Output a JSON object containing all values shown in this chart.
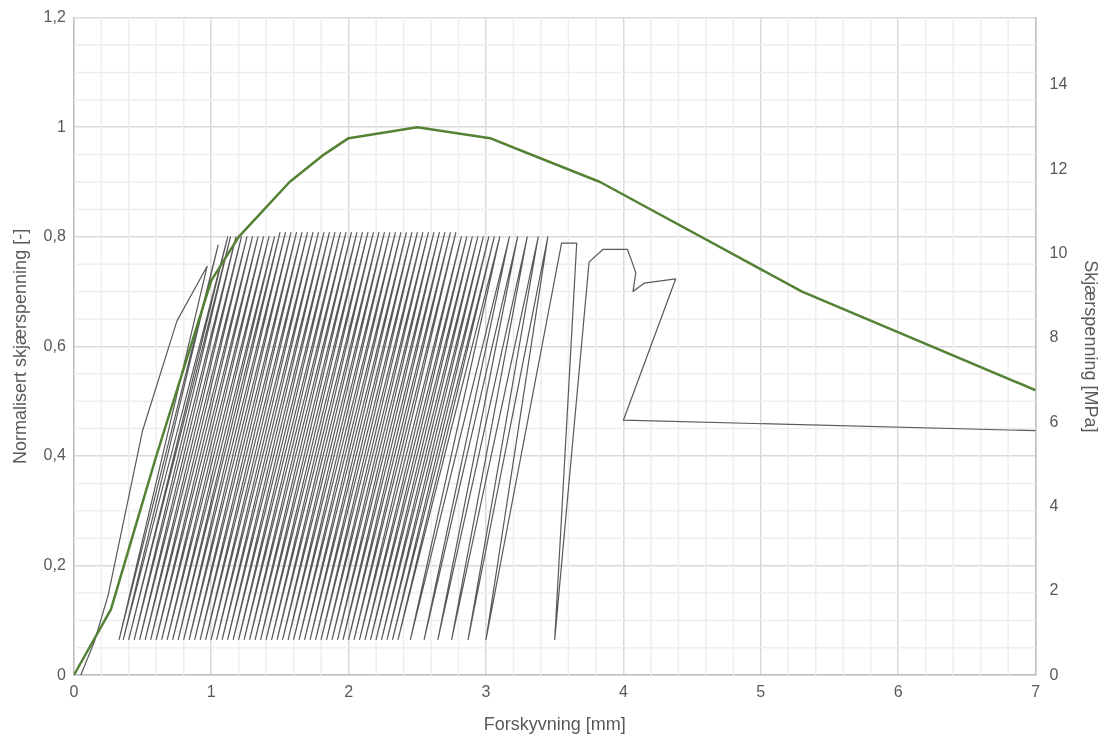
{
  "chart_data": {
    "type": "line",
    "xlabel": "Forskyvning [mm]",
    "ylabel": "Normalisert skjærspenning [-]",
    "y2label": "Skjærspenning [MPa]",
    "xlim": [
      0,
      7
    ],
    "xticks": [
      0,
      1,
      2,
      3,
      4,
      5,
      6,
      7
    ],
    "ylim": [
      0,
      1.2
    ],
    "yticks": [
      0,
      {
        "value": 0.2,
        "label": "0,2"
      },
      {
        "value": 0.4,
        "label": "0,4"
      },
      {
        "value": 0.6,
        "label": "0,6"
      },
      {
        "value": 0.8,
        "label": "0,8"
      },
      1,
      {
        "value": 1.2,
        "label": "1,2"
      }
    ],
    "y2lim": [
      0,
      15.6
    ],
    "y2ticks": [
      0,
      2,
      4,
      6,
      8,
      10,
      12,
      14
    ],
    "grid": true,
    "marker": "none",
    "line_style": "solid",
    "series": [
      {
        "axis": "y2",
        "color": "#595959",
        "x": [
          0.05,
          0.15,
          0.25,
          0.5,
          0.75,
          0.97,
          0.33,
          1.05,
          0.36,
          1.12,
          0.4,
          1.14,
          0.44,
          1.18,
          0.48,
          1.22,
          0.52,
          1.26,
          0.56,
          1.3,
          0.6,
          1.34,
          0.64,
          1.38,
          0.68,
          1.42,
          0.72,
          1.46,
          0.76,
          1.5,
          0.8,
          1.54,
          0.84,
          1.58,
          0.88,
          1.62,
          0.92,
          1.66,
          0.96,
          1.7,
          1.0,
          1.74,
          1.04,
          1.78,
          1.08,
          1.82,
          1.12,
          1.86,
          1.16,
          1.9,
          1.2,
          1.94,
          1.24,
          1.98,
          1.28,
          2.02,
          1.32,
          2.06,
          1.36,
          2.1,
          1.4,
          2.14,
          1.44,
          2.18,
          1.48,
          2.22,
          1.52,
          2.26,
          1.56,
          2.3,
          1.6,
          2.34,
          1.64,
          2.38,
          1.68,
          2.42,
          1.72,
          2.46,
          1.76,
          2.5,
          1.8,
          2.54,
          1.84,
          2.58,
          1.88,
          2.62,
          1.92,
          2.66,
          1.96,
          2.7,
          2.0,
          2.74,
          2.04,
          2.78,
          2.08,
          2.82,
          2.12,
          2.86,
          2.16,
          2.9,
          2.2,
          2.94,
          2.24,
          2.98,
          2.28,
          3.02,
          2.32,
          3.06,
          2.36,
          3.1,
          2.45,
          3.17,
          2.55,
          3.23,
          2.65,
          3.3,
          2.75,
          3.38,
          2.87,
          3.45,
          3.0,
          3.55,
          3.66,
          3.5,
          3.75,
          3.85,
          4.03,
          4.09,
          4.07,
          4.15,
          4.38,
          4.0,
          7.0
        ],
        "values": [
          0,
          0.8,
          1.9,
          5.8,
          8.4,
          9.7,
          0.85,
          10.2,
          0.85,
          10.4,
          0.85,
          10.4,
          0.85,
          10.4,
          0.85,
          10.4,
          0.85,
          10.4,
          0.85,
          10.4,
          0.85,
          10.4,
          0.85,
          10.4,
          0.85,
          10.4,
          0.85,
          10.4,
          0.85,
          10.5,
          0.85,
          10.5,
          0.85,
          10.5,
          0.85,
          10.5,
          0.85,
          10.5,
          0.85,
          10.5,
          0.85,
          10.5,
          0.85,
          10.5,
          0.85,
          10.5,
          0.85,
          10.5,
          0.85,
          10.5,
          0.85,
          10.5,
          0.85,
          10.5,
          0.85,
          10.5,
          0.85,
          10.5,
          0.85,
          10.5,
          0.85,
          10.5,
          0.85,
          10.5,
          0.85,
          10.5,
          0.85,
          10.5,
          0.85,
          10.5,
          0.85,
          10.5,
          0.85,
          10.5,
          0.85,
          10.5,
          0.85,
          10.5,
          0.85,
          10.5,
          0.85,
          10.5,
          0.85,
          10.5,
          0.85,
          10.5,
          0.85,
          10.5,
          0.85,
          10.5,
          0.85,
          10.5,
          0.85,
          10.5,
          0.85,
          10.4,
          0.85,
          10.4,
          0.85,
          10.4,
          0.85,
          10.4,
          0.85,
          10.4,
          0.85,
          10.4,
          0.85,
          10.4,
          0.85,
          10.4,
          0.85,
          10.4,
          0.85,
          10.4,
          0.85,
          10.4,
          0.85,
          10.4,
          0.85,
          10.4,
          0.85,
          10.25,
          10.25,
          0.85,
          9.8,
          10.1,
          10.1,
          9.55,
          9.1,
          9.3,
          9.4,
          6.05,
          5.8
        ]
      },
      {
        "color": "#548235",
        "x": [
          0,
          0.27,
          0.6,
          1.0,
          1.2,
          1.57,
          1.82,
          2.0,
          2.5,
          3.03,
          3.83,
          5.3,
          7.0
        ],
        "values": [
          0,
          0.12,
          0.4,
          0.72,
          0.8,
          0.9,
          0.95,
          0.98,
          1.0,
          0.98,
          0.9,
          0.7,
          0.52
        ]
      }
    ]
  }
}
